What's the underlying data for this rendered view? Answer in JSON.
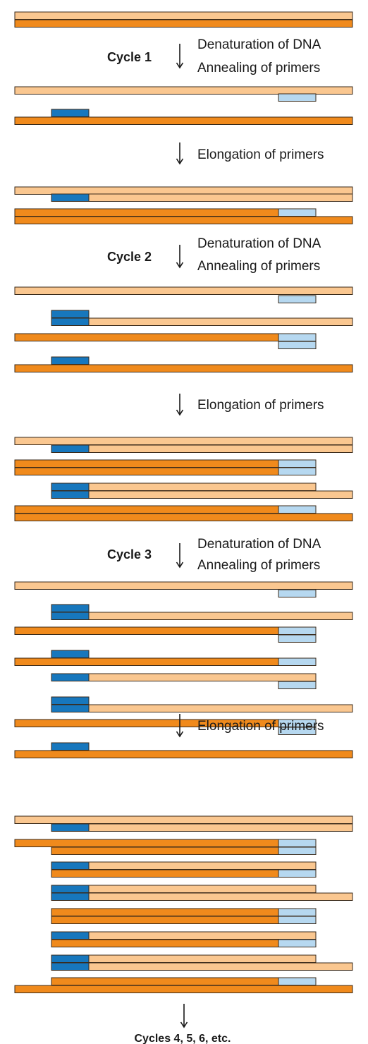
{
  "colors": {
    "template_dark": "#f08a1c",
    "template_light": "#fac790",
    "primer_dark": "#1777bd",
    "primer_light": "#b6d8f0",
    "outline": "#3a2a1a"
  },
  "labels": {
    "cycle1": "Cycle 1",
    "cycle2": "Cycle 2",
    "cycle3": "Cycle 3",
    "denaturation": "Denaturation of DNA",
    "annealing": "Annealing of primers",
    "elongation": "Elongation of primers",
    "final": "Cycles 4, 5, 6, etc."
  },
  "strand_types": {
    "A": "full dark template strand",
    "B": "full light template strand",
    "C": "dark strand extended from forward primer",
    "D": "light strand extended from reverse primer",
    "E": "dark product strand",
    "F": "light product strand",
    "P1": "forward primer",
    "P2": "reverse primer"
  },
  "stages": [
    {
      "id": "start",
      "strands": [
        "B",
        "A"
      ]
    },
    {
      "id": "cycle1-annealed",
      "strands": [
        "B",
        "P2",
        "P1",
        "A"
      ]
    },
    {
      "id": "cycle1-elongated",
      "strands": [
        "B",
        "D",
        "C",
        "A"
      ]
    },
    {
      "id": "cycle2-annealed",
      "strands": [
        "B",
        "P2",
        "P1",
        "D",
        "C",
        "P2",
        "P1",
        "A"
      ]
    },
    {
      "id": "cycle2-elongated",
      "strands": [
        "B",
        "D",
        "C",
        "E",
        "F",
        "D",
        "C",
        "A"
      ]
    },
    {
      "id": "cycle3-annealed",
      "strands": [
        "B",
        "P2",
        "P1",
        "D",
        "C",
        "P2",
        "P1",
        "E",
        "F",
        "P2",
        "P1",
        "D",
        "C",
        "P2",
        "P1",
        "A"
      ]
    },
    {
      "id": "cycle3-elongated",
      "strands": [
        "B",
        "D",
        "C",
        "E",
        "F",
        "E",
        "F",
        "D",
        "C",
        "E",
        "F",
        "E",
        "F",
        "D",
        "C",
        "A"
      ]
    }
  ]
}
